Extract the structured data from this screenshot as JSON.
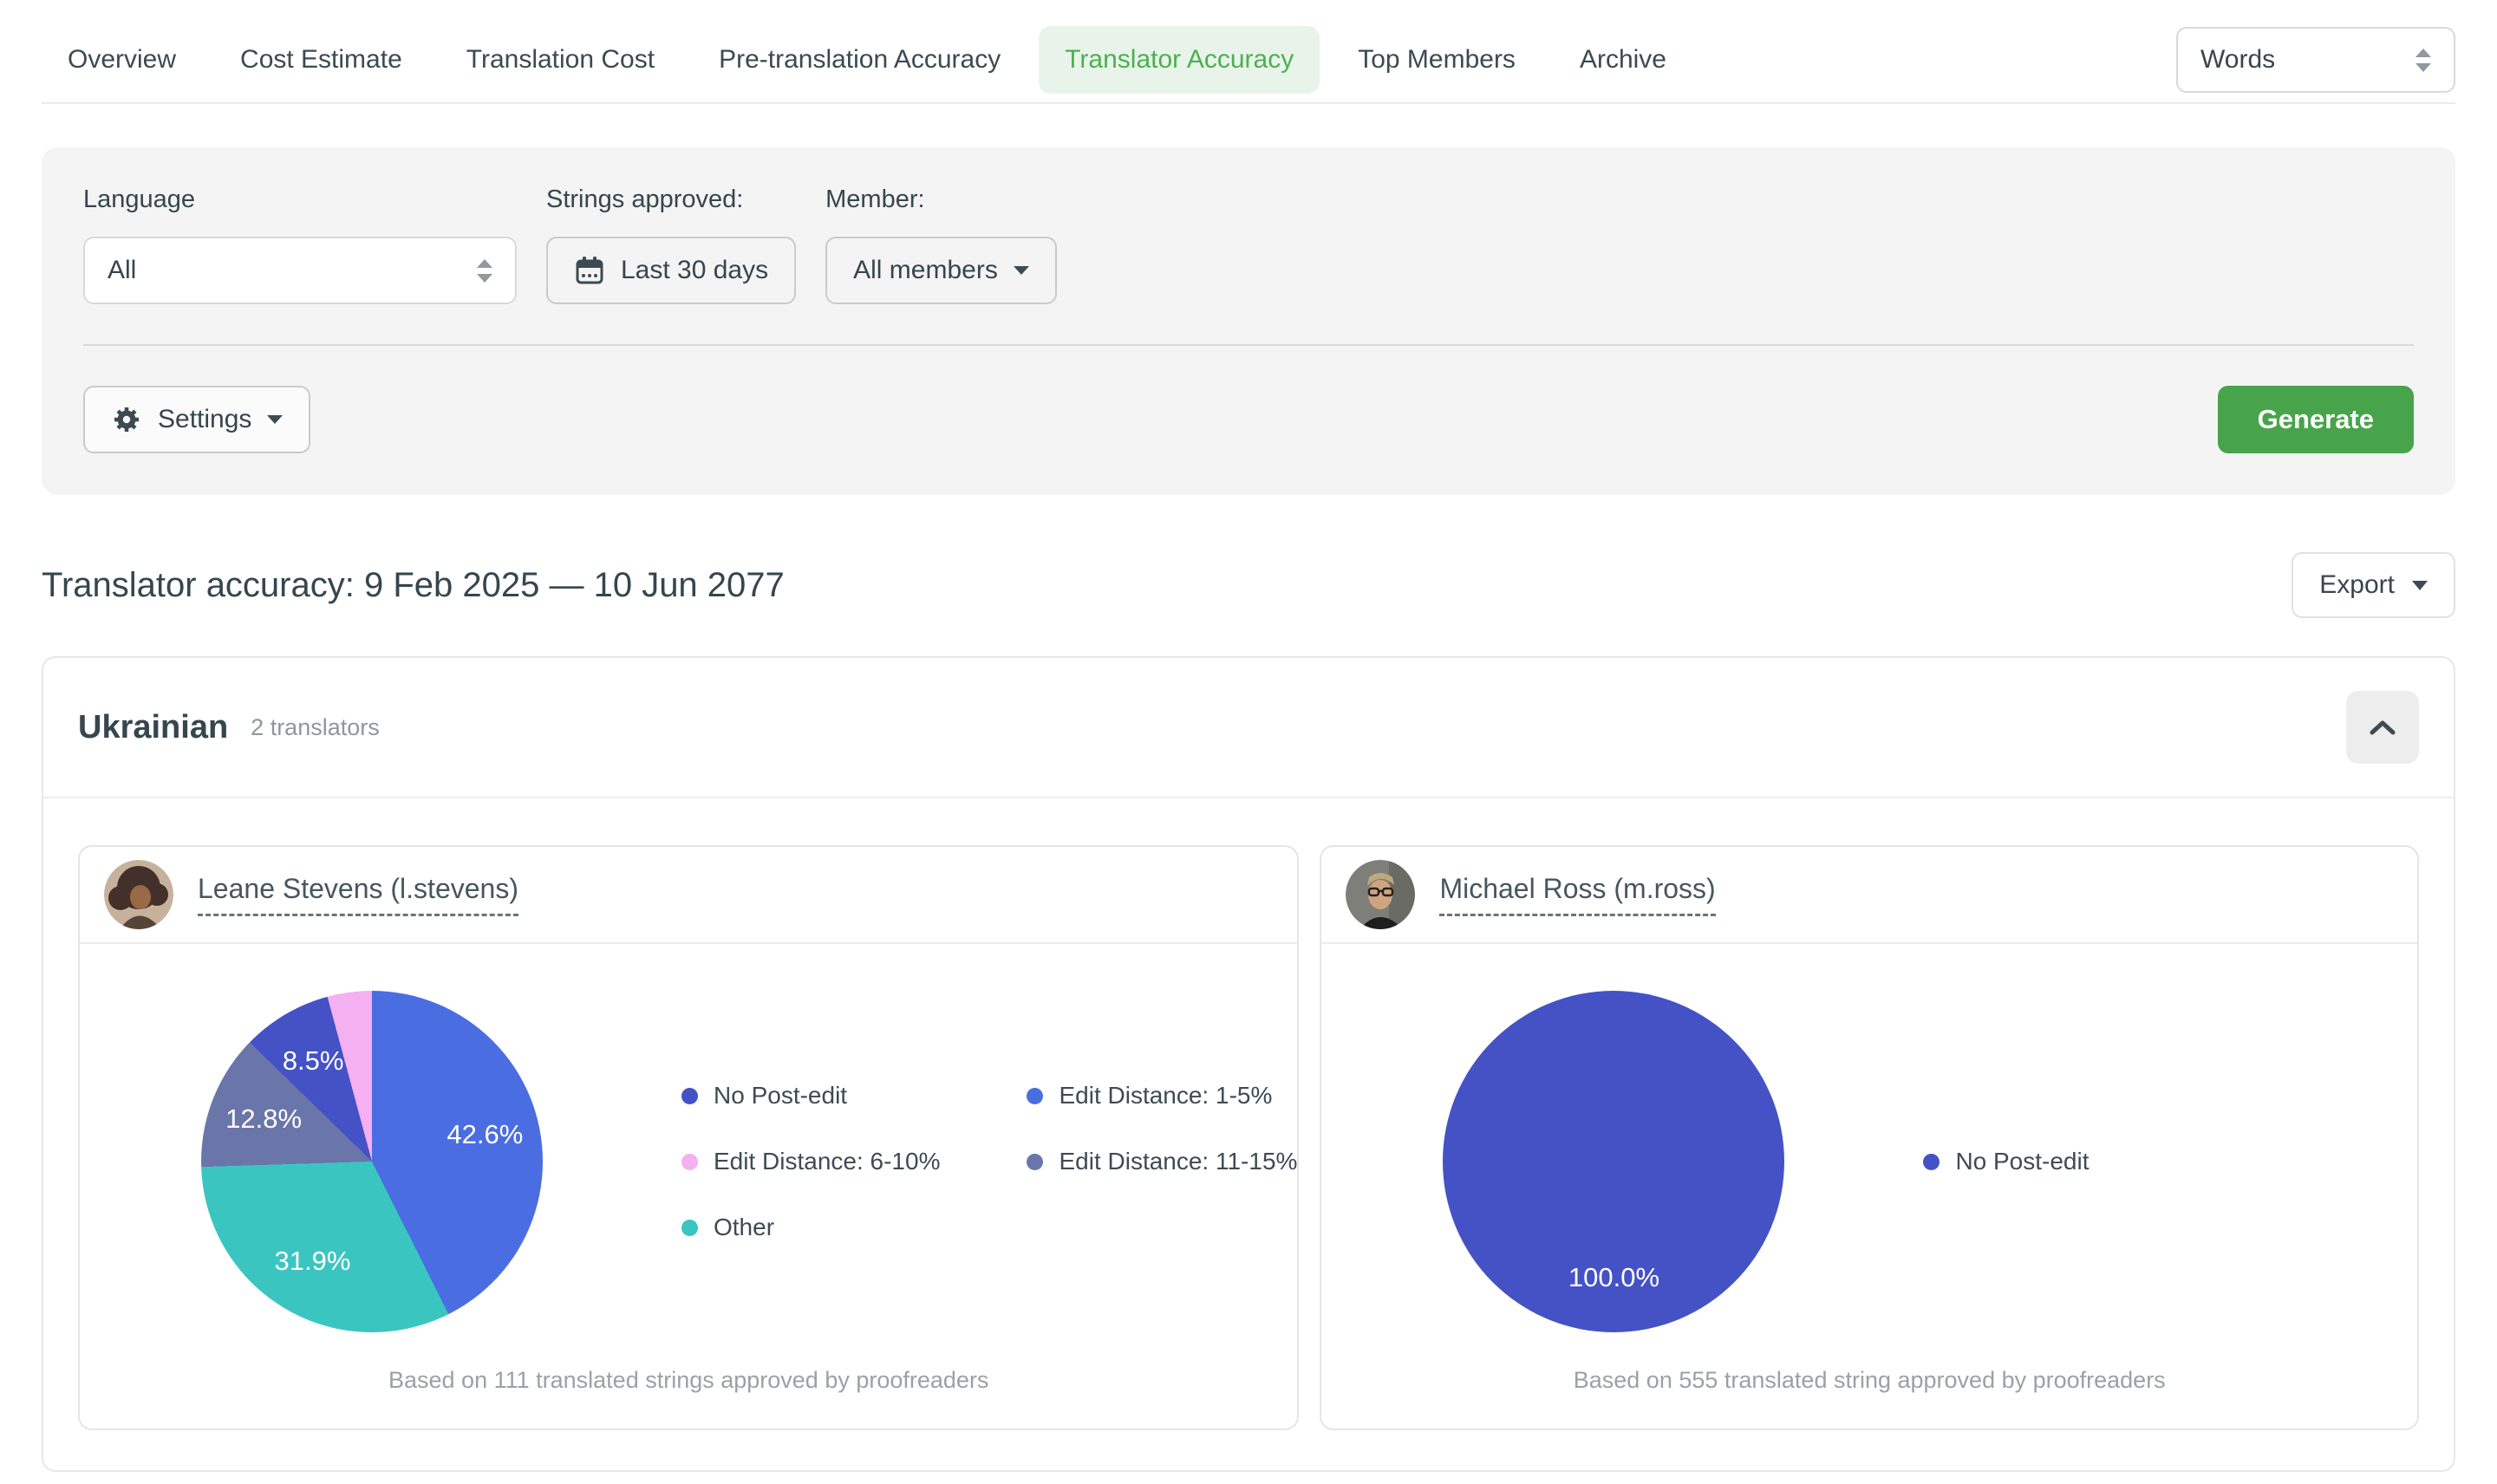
{
  "tabs": {
    "items": [
      {
        "label": "Overview"
      },
      {
        "label": "Cost Estimate"
      },
      {
        "label": "Translation Cost"
      },
      {
        "label": "Pre-translation Accuracy"
      },
      {
        "label": "Translator Accuracy"
      },
      {
        "label": "Top Members"
      },
      {
        "label": "Archive"
      }
    ],
    "active": "Translator Accuracy"
  },
  "unit_select": {
    "value": "Words"
  },
  "filters": {
    "language_label": "Language",
    "language_value": "All",
    "strings_approved_label": "Strings approved:",
    "date_range_value": "Last 30 days",
    "member_label": "Member:",
    "member_value": "All members",
    "settings_label": "Settings",
    "generate_label": "Generate"
  },
  "report": {
    "title": "Translator accuracy: 9 Feb 2025 — 10 Jun 2077",
    "export_label": "Export"
  },
  "language_section": {
    "name": "Ukrainian",
    "translators_count": "2 translators"
  },
  "chart_data": [
    {
      "type": "pie",
      "translator": "Leane Stevens (l.stevens)",
      "legend_position": "right",
      "slices": [
        {
          "name": "Edit Distance: 1-5%",
          "value": 42.6,
          "color": "#4b6de2",
          "label": "42.6%"
        },
        {
          "name": "Other",
          "value": 31.9,
          "color": "#3bc5c1",
          "label": "31.9%"
        },
        {
          "name": "Edit Distance: 11-15%",
          "value": 12.8,
          "color": "#6a76aa",
          "label": "12.8%"
        },
        {
          "name": "No Post-edit",
          "value": 8.5,
          "color": "#4452c6",
          "label": "8.5%"
        },
        {
          "name": "Edit Distance: 6-10%",
          "value": 4.2,
          "color": "#f5b0f2",
          "label": null
        }
      ],
      "legend": [
        {
          "label": "No Post-edit",
          "color": "#4452c6"
        },
        {
          "label": "Edit Distance: 1-5%",
          "color": "#4b6de2"
        },
        {
          "label": "Edit Distance: 6-10%",
          "color": "#f5b0f2"
        },
        {
          "label": "Edit Distance: 11-15%",
          "color": "#6a76aa"
        },
        {
          "label": "Other",
          "color": "#3bc5c1"
        }
      ],
      "footer": "Based on 111 translated strings approved by proofreaders"
    },
    {
      "type": "pie",
      "translator": "Michael Ross (m.ross)",
      "legend_position": "right",
      "slices": [
        {
          "name": "No Post-edit",
          "value": 100.0,
          "color": "#4452c6",
          "label": "100.0%"
        }
      ],
      "legend": [
        {
          "label": "No Post-edit",
          "color": "#4452c6"
        }
      ],
      "footer": "Based on 555 translated string approved by proofreaders"
    }
  ]
}
